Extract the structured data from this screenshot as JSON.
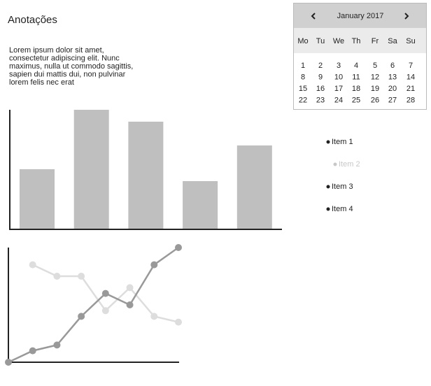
{
  "header": {
    "title": "Anotações"
  },
  "paragraph": {
    "lines": [
      "Lorem ipsum dolor sit amet,",
      "consectetur adipiscing elit. Nunc",
      "maximus, nulla ut commodo sagittis,",
      "sapien dui mattis dui, non pulvinar",
      "lorem felis nec erat"
    ]
  },
  "calendar": {
    "month": "January 2017",
    "weekdays": [
      "Mo",
      "Tu",
      "We",
      "Th",
      "Fr",
      "Sa",
      "Su"
    ],
    "weeks": [
      [
        1,
        2,
        3,
        4,
        5,
        6,
        7
      ],
      [
        8,
        9,
        10,
        11,
        12,
        13,
        14
      ],
      [
        15,
        16,
        17,
        18,
        19,
        20,
        21
      ],
      [
        22,
        23,
        24,
        25,
        26,
        27,
        28
      ]
    ]
  },
  "list": {
    "items": [
      {
        "label": "Item 1",
        "disabled": false
      },
      {
        "label": "Item 2",
        "disabled": true
      },
      {
        "label": "Item 3",
        "disabled": false
      },
      {
        "label": "Item 4",
        "disabled": false
      }
    ]
  },
  "chart_data": [
    {
      "type": "bar",
      "categories": [
        null,
        null,
        null,
        null,
        null
      ],
      "values": [
        50,
        100,
        90,
        40,
        70
      ],
      "color": "#bfbfbf",
      "ylim": [
        0,
        100
      ]
    },
    {
      "type": "line",
      "categories": [
        null,
        null,
        null,
        null,
        null,
        null,
        null,
        null
      ],
      "ylim": [
        0,
        100
      ],
      "series": [
        {
          "color": "#999999",
          "values": [
            0,
            10,
            15,
            40,
            60,
            50,
            85,
            100
          ]
        },
        {
          "color": "#dddddd",
          "values": [
            null,
            85,
            75,
            75,
            45,
            65,
            40,
            35
          ]
        }
      ]
    }
  ]
}
